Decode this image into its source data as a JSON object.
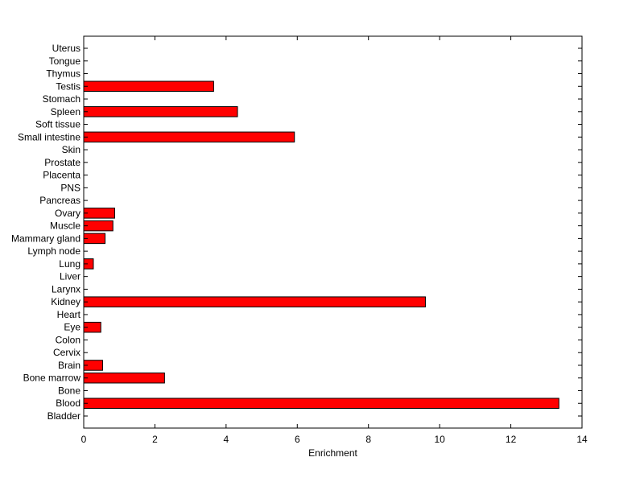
{
  "chart_data": {
    "type": "bar",
    "orientation": "horizontal",
    "title": "",
    "xlabel": "Enrichment",
    "ylabel": "",
    "xlim": [
      0,
      14
    ],
    "xticks": [
      0,
      2,
      4,
      6,
      8,
      10,
      12,
      14
    ],
    "grid": false,
    "bar_color": "#ff0000",
    "bar_edge_color": "#000000",
    "categories": [
      "Bladder",
      "Blood",
      "Bone",
      "Bone marrow",
      "Brain",
      "Cervix",
      "Colon",
      "Eye",
      "Heart",
      "Kidney",
      "Larynx",
      "Liver",
      "Lung",
      "Lymph node",
      "Mammary gland",
      "Muscle",
      "Ovary",
      "Pancreas",
      "PNS",
      "Placenta",
      "Prostate",
      "Skin",
      "Small intestine",
      "Soft tissue",
      "Spleen",
      "Stomach",
      "Testis",
      "Thymus",
      "Tongue",
      "Uterus"
    ],
    "values": [
      0,
      13.35,
      0,
      2.27,
      0.53,
      0,
      0,
      0.48,
      0,
      9.6,
      0,
      0,
      0.27,
      0,
      0.6,
      0.82,
      0.87,
      0,
      0,
      0,
      0,
      0,
      5.92,
      0,
      4.32,
      0,
      3.65,
      0,
      0,
      0
    ]
  }
}
